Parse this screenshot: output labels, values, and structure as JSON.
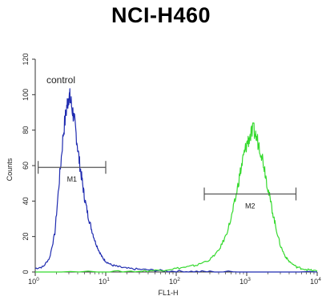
{
  "chart_data": {
    "type": "line",
    "title": "NCI-H460",
    "xlabel": "FL1-H",
    "ylabel": "Counts",
    "xscale": "log",
    "xlim": [
      1,
      10000
    ],
    "ylim": [
      0,
      120
    ],
    "x_ticks": [
      {
        "value": 1,
        "base": "10",
        "exp": "0"
      },
      {
        "value": 10,
        "base": "10",
        "exp": "1"
      },
      {
        "value": 100,
        "base": "10",
        "exp": "2"
      },
      {
        "value": 1000,
        "base": "10",
        "exp": "3"
      },
      {
        "value": 10000,
        "base": "10",
        "exp": "4"
      }
    ],
    "y_ticks": [
      0,
      20,
      40,
      60,
      80,
      100,
      120
    ],
    "annotation": "control",
    "gates": [
      {
        "label": "M1",
        "x_start": 1.1,
        "x_end": 10,
        "y": 59
      },
      {
        "label": "M2",
        "x_start": 250,
        "x_end": 5000,
        "y": 44
      }
    ],
    "series": [
      {
        "color": "#1f2bb0",
        "x": [
          1,
          1.3,
          1.6,
          1.9,
          2.2,
          2.5,
          2.8,
          3.0,
          3.2,
          3.5,
          3.8,
          4.2,
          4.6,
          5.0,
          5.6,
          6.3,
          7.1,
          8.0,
          9.0,
          10,
          12,
          15,
          20,
          30,
          50,
          80,
          150,
          300,
          1000,
          10000
        ],
        "y": [
          2,
          3,
          8,
          22,
          52,
          78,
          93,
          100,
          96,
          88,
          78,
          63,
          52,
          42,
          32,
          24,
          17,
          12,
          8,
          6,
          4,
          3,
          2,
          1.5,
          1,
          0.5,
          0.3,
          0.2,
          0,
          0
        ]
      },
      {
        "color": "#35d92e",
        "x": [
          1,
          10,
          30,
          60,
          100,
          150,
          200,
          300,
          400,
          500,
          600,
          700,
          800,
          900,
          1000,
          1100,
          1250,
          1400,
          1600,
          1800,
          2000,
          2300,
          2600,
          3000,
          3500,
          4000,
          5000,
          6000,
          8000,
          10000
        ],
        "y": [
          0,
          0,
          0.5,
          1,
          2,
          3,
          4,
          7,
          12,
          20,
          30,
          42,
          55,
          65,
          72,
          76,
          80,
          75,
          68,
          58,
          47,
          35,
          25,
          15,
          9,
          6,
          3,
          2,
          1,
          0.5
        ]
      }
    ]
  }
}
